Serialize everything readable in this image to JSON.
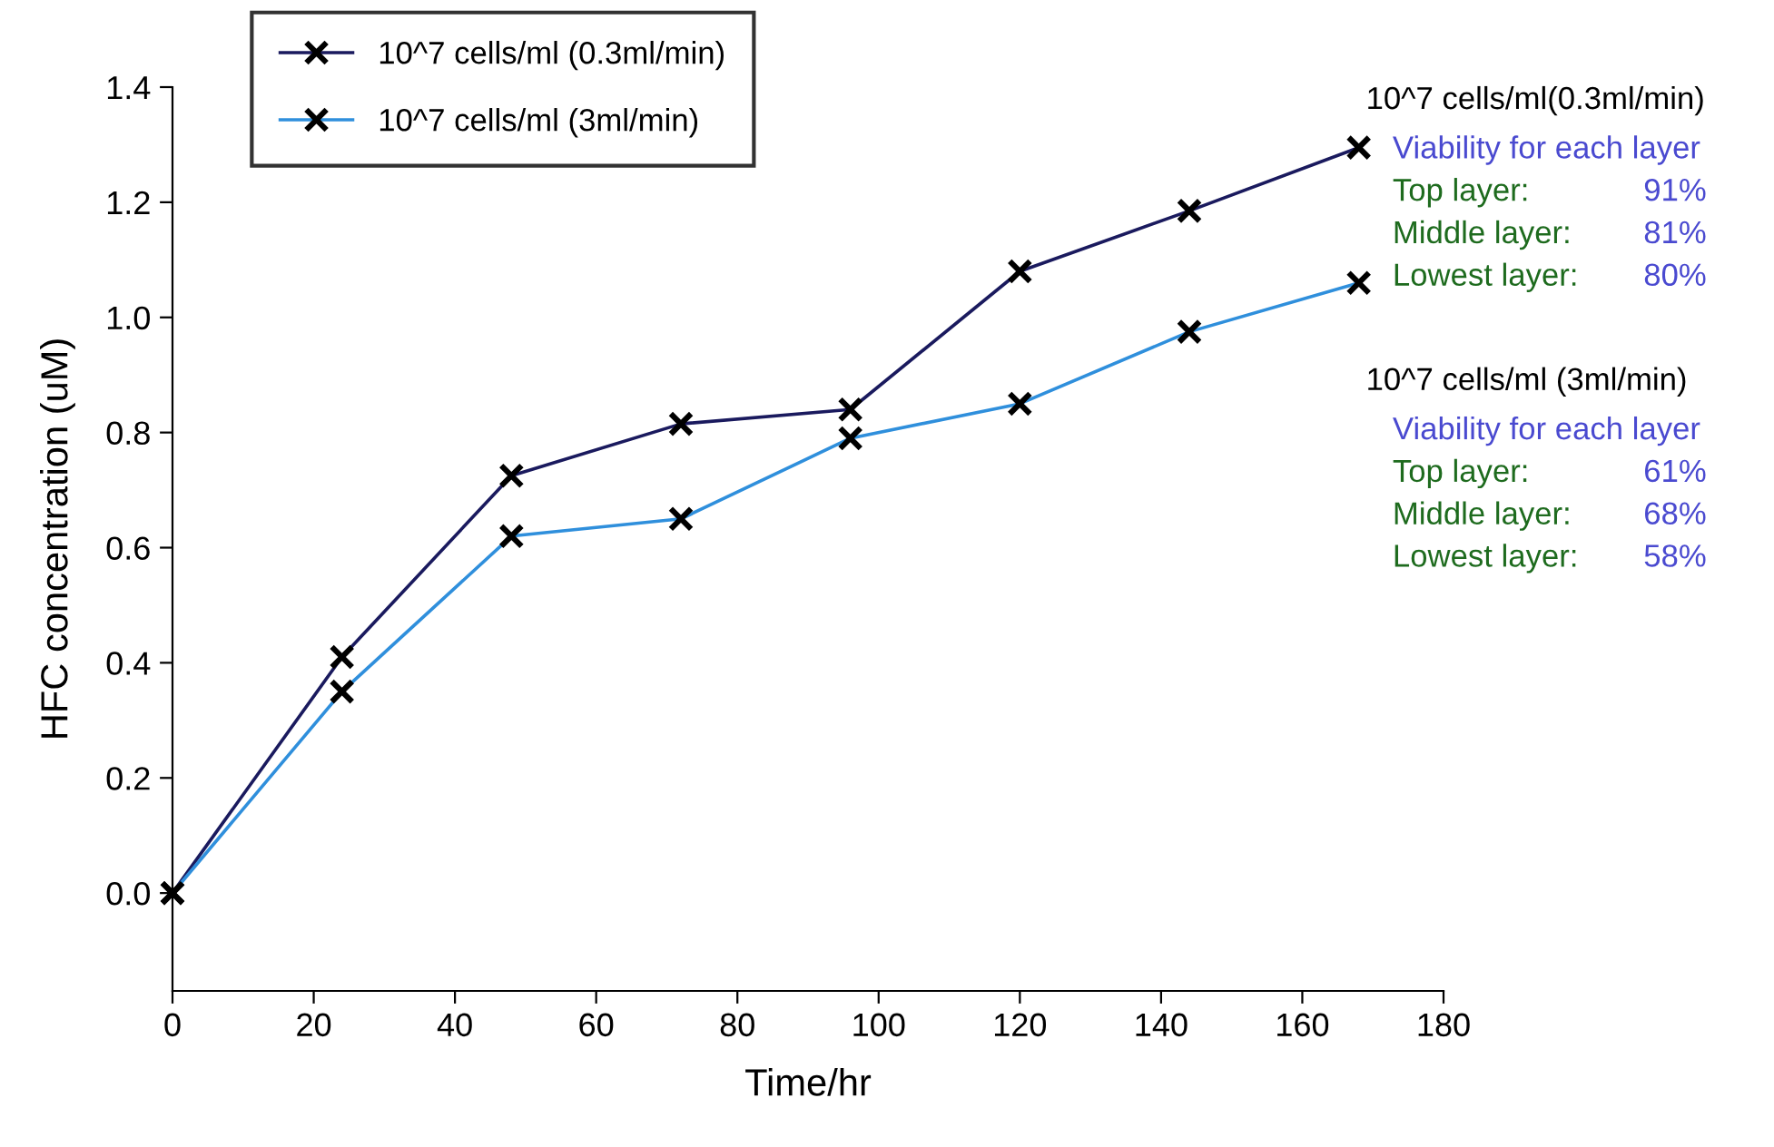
{
  "chart_data": {
    "type": "line",
    "xlabel": "Time/hr",
    "ylabel": "HFC concentration (uM)",
    "x": [
      0,
      24,
      48,
      72,
      96,
      120,
      144,
      168
    ],
    "series": [
      {
        "name": "10^7 cells/ml (0.3ml/min)",
        "color": "#1a1a5e",
        "values": [
          0,
          0.41,
          0.725,
          0.815,
          0.84,
          1.08,
          1.185,
          1.295
        ]
      },
      {
        "name": "10^7 cells/ml (3ml/min)",
        "color": "#2f8fdc",
        "values": [
          0,
          0.35,
          0.62,
          0.65,
          0.79,
          0.85,
          0.975,
          1.06
        ]
      }
    ],
    "xlim": [
      0,
      180
    ],
    "xticks": [
      0,
      20,
      40,
      60,
      80,
      100,
      120,
      140,
      160,
      180
    ],
    "ylim": [
      -0.17,
      1.4
    ],
    "yticks": [
      {
        "value": 0,
        "label": "0.0"
      },
      0.2,
      0.4,
      0.6,
      0.8,
      {
        "value": 1,
        "label": "1.0"
      },
      1.2,
      1.4
    ],
    "marker": "cross",
    "line_style": "solid",
    "legend": "top left",
    "grid": false,
    "annotations": [
      "10^7 cells/ml(0.3ml/min)",
      "Viability for each layer",
      "Top layer:        91%",
      "Middle layer:   81%",
      "Lowest layer:   80%",
      "10^7 cells/ml (3ml/min)",
      "Viability for each layer",
      "Top layer:        61%",
      "Middle layer:   68%",
      "Lowest layer:   58%"
    ]
  }
}
